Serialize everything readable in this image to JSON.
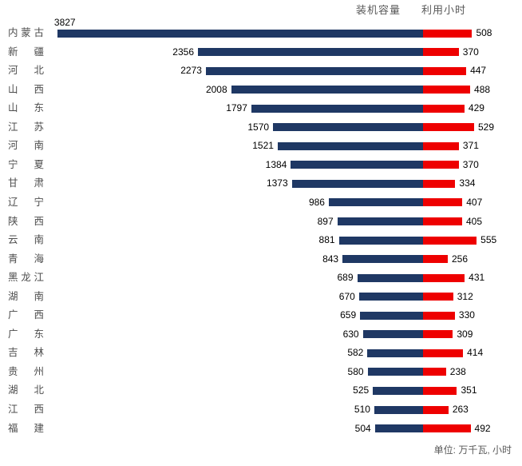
{
  "legend": {
    "capacity": "装机容量",
    "hours": "利用小时"
  },
  "footer": {
    "note": "单位: 万千瓦, 小时"
  },
  "colors": {
    "capacity_bar": "#1f3864",
    "hours_bar": "#ee0000",
    "legend_text": "#595959",
    "category_text": "#4d4d4d",
    "value_text": "#000000",
    "note_text": "#595959",
    "background": "#ffffff"
  },
  "chart_data": {
    "type": "bar",
    "subtype": "diverging-horizontal-tornado",
    "title": "",
    "categories": [
      "内蒙古",
      "新疆",
      "河北",
      "山西",
      "山东",
      "江苏",
      "河南",
      "宁夏",
      "甘肃",
      "辽宁",
      "陕西",
      "云南",
      "青海",
      "黑龙江",
      "湖南",
      "广西",
      "广东",
      "吉林",
      "贵州",
      "湖北",
      "江西",
      "福建"
    ],
    "series": [
      {
        "name": "装机容量",
        "side": "left",
        "color": "#1f3864",
        "values": [
          3827,
          2356,
          2273,
          2008,
          1797,
          1570,
          1521,
          1384,
          1373,
          986,
          897,
          881,
          843,
          689,
          670,
          659,
          630,
          582,
          580,
          525,
          510,
          504
        ]
      },
      {
        "name": "利用小时",
        "side": "right",
        "color": "#ee0000",
        "values": [
          508,
          370,
          447,
          488,
          429,
          529,
          371,
          370,
          334,
          407,
          405,
          555,
          256,
          431,
          312,
          330,
          309,
          414,
          238,
          351,
          263,
          492
        ]
      }
    ],
    "data_labels": "shown at outside ends of both bar series",
    "unit_note": "单位: 万千瓦, 小时",
    "legend_position": "top-right",
    "grid": false,
    "axis_lines": false
  }
}
